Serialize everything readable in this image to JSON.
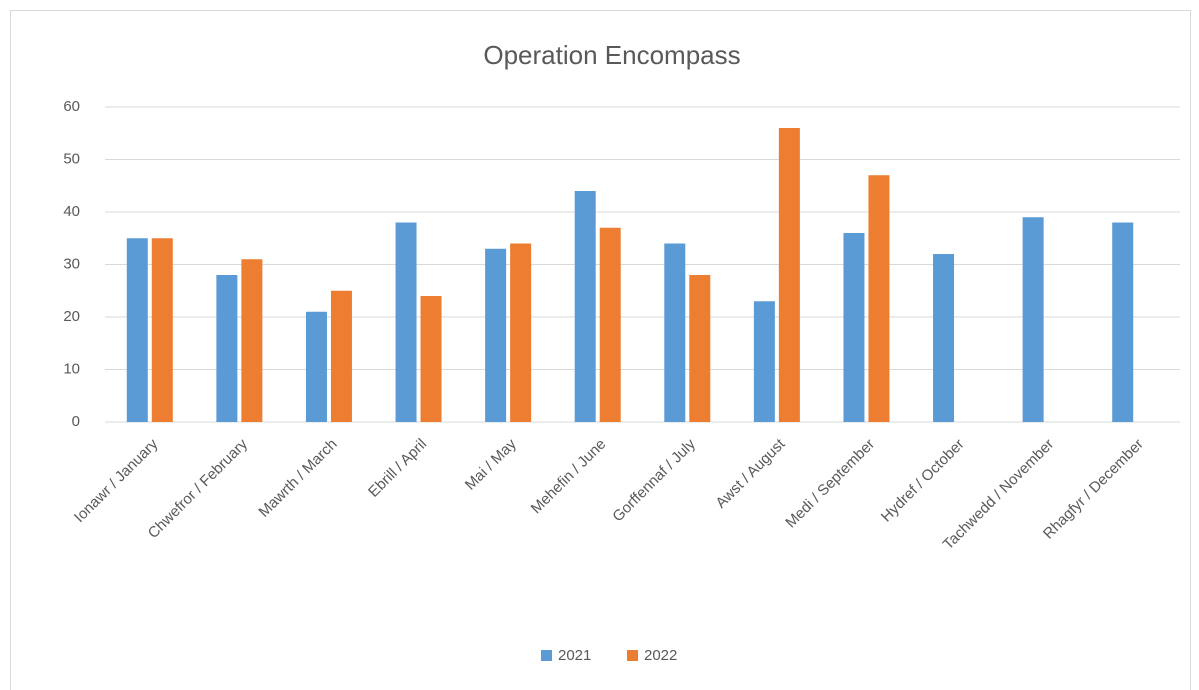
{
  "chart_data": {
    "type": "bar",
    "title": "Operation Encompass",
    "categories": [
      "Ionawr / January",
      "Chwefror / February",
      "Mawrth / March",
      "Ebrill / April",
      "Mai / May",
      "Mehefin / June",
      "Gorffennaf / July",
      "Awst / August",
      "Medi / September",
      "Hydref / October",
      "Tachwedd / November",
      "Rhagfyr / December"
    ],
    "series": [
      {
        "name": "2021",
        "color": "#5b9bd5",
        "values": [
          35,
          28,
          21,
          38,
          33,
          44,
          34,
          23,
          36,
          32,
          39,
          38
        ]
      },
      {
        "name": "2022",
        "color": "#ed7d31",
        "values": [
          35,
          31,
          25,
          24,
          34,
          37,
          28,
          56,
          47,
          null,
          null,
          null
        ]
      }
    ],
    "ylim": [
      0,
      60
    ],
    "yticks": [
      0,
      10,
      20,
      30,
      40,
      50,
      60
    ],
    "grid": true,
    "legend": "bottom"
  }
}
